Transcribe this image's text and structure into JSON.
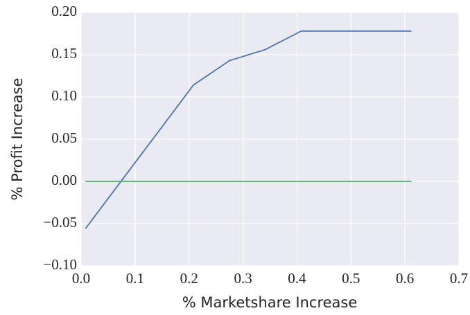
{
  "chart_data": {
    "type": "line",
    "xlabel": "% Marketshare Increase",
    "ylabel": "% Profit Increase",
    "x": [
      0.008,
      0.075,
      0.141,
      0.208,
      0.275,
      0.341,
      0.408,
      0.475,
      0.541,
      0.612
    ],
    "series": [
      {
        "color": "#4c72b0",
        "values": [
          -0.056,
          0.001,
          0.057,
          0.114,
          0.143,
          0.156,
          0.178,
          0.178,
          0.178,
          0.178
        ]
      },
      {
        "color": "#55a868",
        "values": [
          0,
          0,
          0,
          0,
          0,
          0,
          0,
          0,
          0,
          0
        ]
      }
    ],
    "xlim": [
      0,
      0.7
    ],
    "ylim": [
      -0.1,
      0.2
    ],
    "xticks": [
      {
        "value": 0,
        "label": "0.0"
      },
      0.1,
      0.2,
      0.3,
      0.4,
      0.5,
      0.6,
      0.7
    ],
    "yticks": [
      {
        "value": -0.1,
        "label": "−0.10"
      },
      {
        "value": -0.05,
        "label": "−0.05"
      },
      {
        "value": 0,
        "label": "0.00"
      },
      {
        "value": 0.05,
        "label": "0.05"
      },
      {
        "value": 0.1,
        "label": "0.10"
      },
      {
        "value": 0.15,
        "label": "0.15"
      },
      {
        "value": 0.2,
        "label": "0.20"
      }
    ],
    "grid": true,
    "background": "#eaeaf2"
  }
}
